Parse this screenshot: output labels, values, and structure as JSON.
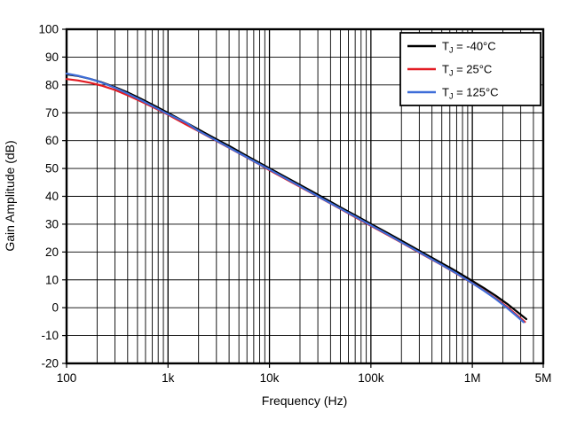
{
  "chart_data": {
    "type": "line",
    "title": "",
    "xlabel": "Frequency (Hz)",
    "ylabel": "Gain Amplitude (dB)",
    "x_scale": "log",
    "xlim": [
      100,
      5000000
    ],
    "ylim": [
      -20,
      100
    ],
    "y_tick_step": 10,
    "grid": true,
    "legend_position": "top-right",
    "colors": {
      "grid": "#000000",
      "frame": "#000000",
      "background": "#ffffff"
    },
    "y_ticks": [
      100,
      90,
      80,
      70,
      60,
      50,
      40,
      30,
      20,
      10,
      0,
      -10,
      -20
    ],
    "x_ticks": [
      {
        "value": 100,
        "label": "100"
      },
      {
        "value": 1000,
        "label": "1k"
      },
      {
        "value": 10000,
        "label": "10k"
      },
      {
        "value": 100000,
        "label": "100k"
      },
      {
        "value": 1000000,
        "label": "1M"
      },
      {
        "value": 5000000,
        "label": "5M"
      }
    ],
    "series": [
      {
        "id": "tj-m40c",
        "name": "TJ = -40C",
        "label_prefix": "T",
        "label_sub": "J",
        "label_suffix": " = -40°C",
        "color": "#000000",
        "points": [
          [
            100,
            83.8
          ],
          [
            130,
            83.2
          ],
          [
            170,
            82.2
          ],
          [
            220,
            81.0
          ],
          [
            300,
            79.2
          ],
          [
            400,
            77.3
          ],
          [
            550,
            74.9
          ],
          [
            750,
            72.4
          ],
          [
            1000,
            70.0
          ],
          [
            1500,
            66.5
          ],
          [
            2000,
            64.0
          ],
          [
            3000,
            60.5
          ],
          [
            4000,
            58.1
          ],
          [
            6000,
            54.5
          ],
          [
            8000,
            52.0
          ],
          [
            10000,
            50.1
          ],
          [
            15000,
            46.6
          ],
          [
            20000,
            44.1
          ],
          [
            30000,
            40.6
          ],
          [
            50000,
            36.1
          ],
          [
            70000,
            33.2
          ],
          [
            100000,
            30.1
          ],
          [
            150000,
            26.6
          ],
          [
            200000,
            24.1
          ],
          [
            300000,
            20.5
          ],
          [
            500000,
            16.0
          ],
          [
            700000,
            13.0
          ],
          [
            1000000,
            9.6
          ],
          [
            1300000,
            7.1
          ],
          [
            1700000,
            4.3
          ],
          [
            2200000,
            1.4
          ],
          [
            2800000,
            -1.6
          ],
          [
            3400000,
            -4.1
          ]
        ]
      },
      {
        "id": "tj-25c",
        "name": "TJ = 25C",
        "label_prefix": "T",
        "label_sub": "J",
        "label_suffix": " = 25°C",
        "color": "#e31b23",
        "points": [
          [
            100,
            82.1
          ],
          [
            130,
            81.6
          ],
          [
            170,
            80.8
          ],
          [
            220,
            79.8
          ],
          [
            300,
            78.2
          ],
          [
            400,
            76.3
          ],
          [
            550,
            74.0
          ],
          [
            750,
            71.6
          ],
          [
            1000,
            69.3
          ],
          [
            1500,
            65.8
          ],
          [
            2000,
            63.4
          ],
          [
            3000,
            59.9
          ],
          [
            4000,
            57.4
          ],
          [
            6000,
            53.9
          ],
          [
            8000,
            51.4
          ],
          [
            10000,
            49.4
          ],
          [
            15000,
            45.9
          ],
          [
            20000,
            43.4
          ],
          [
            30000,
            39.9
          ],
          [
            50000,
            35.5
          ],
          [
            70000,
            32.5
          ],
          [
            100000,
            29.4
          ],
          [
            150000,
            25.9
          ],
          [
            200000,
            23.4
          ],
          [
            300000,
            19.8
          ],
          [
            500000,
            15.3
          ],
          [
            700000,
            12.2
          ],
          [
            1000000,
            8.8
          ],
          [
            1300000,
            6.2
          ],
          [
            1700000,
            3.3
          ],
          [
            2200000,
            0.3
          ],
          [
            2800000,
            -2.9
          ],
          [
            3300000,
            -5.1
          ]
        ]
      },
      {
        "id": "tj-125c",
        "name": "TJ = 125C",
        "label_prefix": "T",
        "label_sub": "J",
        "label_suffix": " = 125°C",
        "color": "#3e6dd8",
        "points": [
          [
            100,
            84.1
          ],
          [
            130,
            83.3
          ],
          [
            170,
            82.2
          ],
          [
            220,
            80.9
          ],
          [
            300,
            79.0
          ],
          [
            400,
            76.9
          ],
          [
            550,
            74.4
          ],
          [
            750,
            71.9
          ],
          [
            1000,
            69.5
          ],
          [
            1500,
            66.5
          ],
          [
            2000,
            63.5
          ],
          [
            3000,
            60.0
          ],
          [
            4000,
            57.5
          ],
          [
            6000,
            54.0
          ],
          [
            8000,
            51.5
          ],
          [
            10000,
            49.6
          ],
          [
            15000,
            46.1
          ],
          [
            20000,
            43.6
          ],
          [
            30000,
            40.0
          ],
          [
            50000,
            35.6
          ],
          [
            70000,
            32.7
          ],
          [
            100000,
            29.6
          ],
          [
            150000,
            26.1
          ],
          [
            200000,
            23.5
          ],
          [
            300000,
            19.9
          ],
          [
            500000,
            15.4
          ],
          [
            700000,
            12.3
          ],
          [
            1000000,
            8.8
          ],
          [
            1300000,
            6.1
          ],
          [
            1700000,
            3.1
          ],
          [
            2200000,
            -0.1
          ],
          [
            2700000,
            -2.8
          ],
          [
            3200000,
            -5.2
          ]
        ]
      }
    ]
  }
}
